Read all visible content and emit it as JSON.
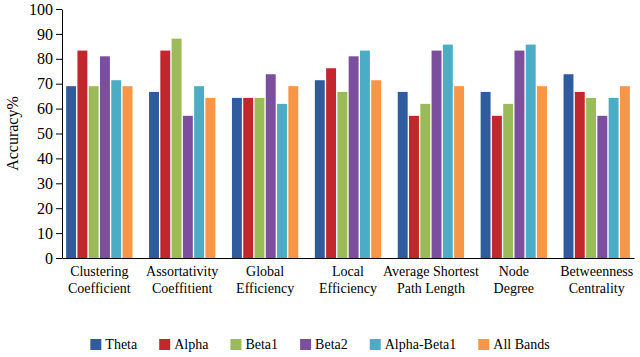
{
  "chart_data": {
    "type": "bar",
    "y_label": "Accuracy%",
    "categories": [
      "Clustering Coefficient",
      "Assortativity Coeffitient",
      "Global Efficiency",
      "Local Efficiency",
      "Average Shortest Path Length",
      "Node Degree",
      "Betweenness Centrality"
    ],
    "series": [
      {
        "name": "Theta",
        "color": "#2e5c9e",
        "values": [
          69,
          66.7,
          64.3,
          71.4,
          66.7,
          66.7,
          73.8
        ]
      },
      {
        "name": "Alpha",
        "color": "#c1272d",
        "values": [
          83.3,
          83.3,
          64.3,
          76.2,
          57.1,
          57.1,
          66.7
        ]
      },
      {
        "name": "Beta1",
        "color": "#9bbb59",
        "values": [
          69,
          88.1,
          64.3,
          66.7,
          61.9,
          61.9,
          64.3
        ]
      },
      {
        "name": "Beta2",
        "color": "#7b4f9d",
        "values": [
          81,
          57.1,
          73.8,
          81,
          83.3,
          83.3,
          57.1
        ]
      },
      {
        "name": "Alpha-Beta1",
        "color": "#4bacc6",
        "values": [
          71.4,
          69,
          61.9,
          83.3,
          85.7,
          85.7,
          64.3
        ]
      },
      {
        "name": "All Bands",
        "color": "#f79646",
        "values": [
          69,
          64.3,
          69,
          71.4,
          69,
          69,
          69
        ]
      }
    ],
    "ylim": [
      0,
      100
    ],
    "yticks": [
      0,
      10,
      20,
      30,
      40,
      50,
      60,
      70,
      80,
      90,
      100
    ],
    "grid": false,
    "legend": "bottom"
  }
}
